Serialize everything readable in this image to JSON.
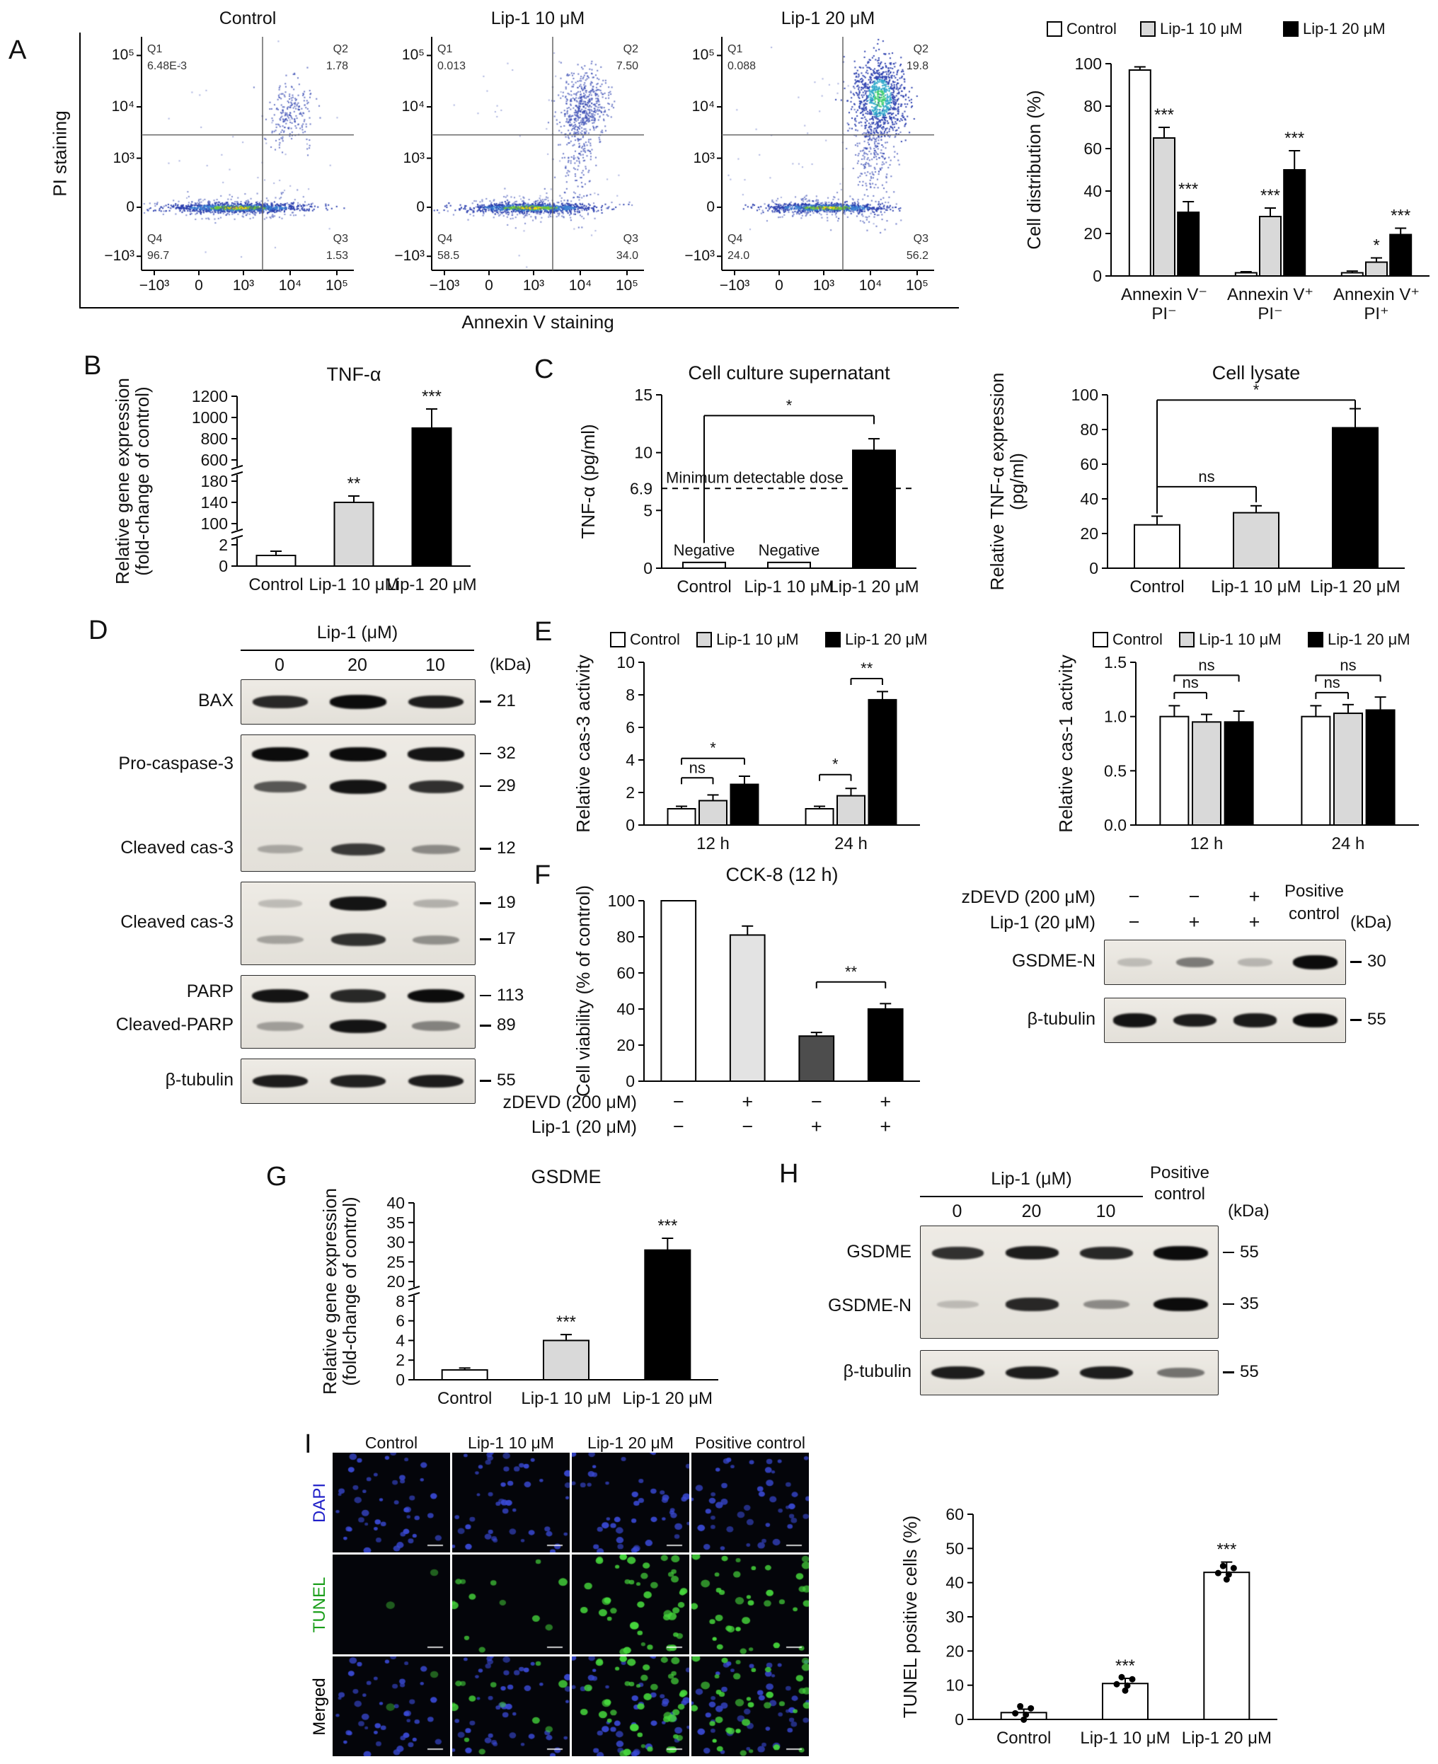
{
  "panels": {
    "a": {
      "letter": "A"
    },
    "b": {
      "letter": "B"
    },
    "c": {
      "letter": "C"
    },
    "d": {
      "letter": "D"
    },
    "e": {
      "letter": "E"
    },
    "f": {
      "letter": "F"
    },
    "g": {
      "letter": "G"
    },
    "h": {
      "letter": "H"
    },
    "i": {
      "letter": "I"
    }
  },
  "flow": {
    "ylabel": "PI staining",
    "xlabel": "Annexin V staining",
    "ticks": [
      "−10³",
      "0",
      "10³",
      "10⁴",
      "10⁵"
    ],
    "plots": [
      {
        "title": "Control",
        "quadrants": [
          {
            "name": "Q1",
            "value": "6.48E-3"
          },
          {
            "name": "Q2",
            "value": "1.78"
          },
          {
            "name": "Q3",
            "value": "1.53"
          },
          {
            "name": "Q4",
            "value": "96.7"
          }
        ]
      },
      {
        "title": "Lip-1 10 μM",
        "quadrants": [
          {
            "name": "Q1",
            "value": "0.013"
          },
          {
            "name": "Q2",
            "value": "7.50"
          },
          {
            "name": "Q3",
            "value": "34.0"
          },
          {
            "name": "Q4",
            "value": "58.5"
          }
        ]
      },
      {
        "title": "Lip-1 20 μM",
        "quadrants": [
          {
            "name": "Q1",
            "value": "0.088"
          },
          {
            "name": "Q2",
            "value": "19.8"
          },
          {
            "name": "Q3",
            "value": "56.2"
          },
          {
            "name": "Q4",
            "value": "24.0"
          }
        ]
      }
    ]
  },
  "chart_data": [
    {
      "id": "cell-distribution",
      "type": "bar",
      "title": "",
      "ylabel": "Cell distribution (%)",
      "categories": [
        "Annexin V⁻\nPI⁻",
        "Annexin V⁺\nPI⁻",
        "Annexin V⁺\nPI⁺"
      ],
      "series": [
        {
          "name": "Control",
          "color": "#ffffff",
          "values": [
            97,
            1.5,
            1.5
          ],
          "errors": [
            1.5,
            0.5,
            0.8
          ]
        },
        {
          "name": "Lip-1 10 μM",
          "color": "#d9d9d9",
          "values": [
            65,
            28,
            6.5
          ],
          "errors": [
            5,
            4,
            2
          ]
        },
        {
          "name": "Lip-1 20 μM",
          "color": "#000000",
          "values": [
            30,
            50,
            19.5
          ],
          "errors": [
            5,
            9,
            3
          ]
        }
      ],
      "yticks": [
        "0",
        "20",
        "40",
        "60",
        "80",
        "100"
      ],
      "sig": [
        {
          "cat": 0,
          "series": 1,
          "label": "***"
        },
        {
          "cat": 0,
          "series": 2,
          "label": "***"
        },
        {
          "cat": 1,
          "series": 1,
          "label": "***"
        },
        {
          "cat": 1,
          "series": 2,
          "label": "***"
        },
        {
          "cat": 2,
          "series": 1,
          "label": "*"
        },
        {
          "cat": 2,
          "series": 2,
          "label": "***"
        }
      ],
      "legend": true
    },
    {
      "id": "tnf-gene",
      "type": "bar",
      "title": "TNF-α",
      "ylabel": "Relative gene expression\n(fold-change of control)",
      "categories": [
        "Control",
        "Lip-1 10 μM",
        "Lip-1 20 μM"
      ],
      "values": [
        1,
        140,
        900
      ],
      "errors": [
        0.4,
        12,
        180
      ],
      "colors": [
        "#ffffff",
        "#d9d9d9",
        "#000000"
      ],
      "yticks": [
        "0",
        "2",
        "100",
        "140",
        "180",
        "600",
        "800",
        "1000",
        "1200"
      ],
      "breaks": [
        [
          2,
          100
        ],
        [
          180,
          600
        ]
      ],
      "sig": [
        {
          "cat": 1,
          "label": "**"
        },
        {
          "cat": 2,
          "label": "***"
        }
      ]
    },
    {
      "id": "supernatant",
      "type": "bar",
      "title": "Cell culture supernatant",
      "ylabel": "TNF-α (pg/ml)",
      "categories": [
        "Control",
        "Lip-1 10 μM",
        "Lip-1 20 μM"
      ],
      "values": [
        0.5,
        0.5,
        10.2
      ],
      "errors": [
        0,
        0,
        1
      ],
      "colors": [
        "#ffffff",
        "#ffffff",
        "#000000"
      ],
      "yticks": [
        "0",
        "5",
        "10",
        "15"
      ],
      "hline": {
        "value": 6.9,
        "label": "Minimum detectable dose",
        "tick": "6.9"
      },
      "bar_labels": [
        {
          "cat": 0,
          "label": "Negative"
        },
        {
          "cat": 1,
          "label": "Negative"
        }
      ],
      "brackets": [
        {
          "from": 0,
          "to": 2,
          "label": "*",
          "y": 13.2,
          "drops": [
            180,
            12
          ]
        }
      ]
    },
    {
      "id": "lysate",
      "type": "bar",
      "title": "Cell lysate",
      "ylabel": "Relative TNF-α expression\n(pg/ml)",
      "categories": [
        "Control",
        "Lip-1 10 μM",
        "Lip-1 20 μM"
      ],
      "values": [
        25,
        32,
        81
      ],
      "errors": [
        5,
        4,
        11
      ],
      "colors": [
        "#ffffff",
        "#d9d9d9",
        "#000000"
      ],
      "yticks": [
        "0",
        "20",
        "40",
        "60",
        "80",
        "100"
      ],
      "brackets": [
        {
          "from": 0,
          "to": 1,
          "label": "ns",
          "y": 47,
          "drops": [
            38,
            22
          ]
        },
        {
          "from": 0,
          "to": 2,
          "label": "*",
          "y": 97,
          "drops": [
            150,
            14
          ]
        }
      ]
    },
    {
      "id": "cas3-activity",
      "type": "bar",
      "title": "",
      "ylabel": "Relative cas-3 activity",
      "categories": [
        "12 h",
        "24 h"
      ],
      "series": [
        {
          "name": "Control",
          "color": "#ffffff",
          "values": [
            1,
            1
          ],
          "errors": [
            0.15,
            0.15
          ]
        },
        {
          "name": "Lip-1 10 μM",
          "color": "#d9d9d9",
          "values": [
            1.5,
            1.8
          ],
          "errors": [
            0.35,
            0.45
          ]
        },
        {
          "name": "Lip-1 20 μM",
          "color": "#000000",
          "values": [
            2.5,
            7.7
          ],
          "errors": [
            0.5,
            0.5
          ]
        }
      ],
      "yticks": [
        "0",
        "2",
        "4",
        "6",
        "8",
        "10"
      ],
      "brackets": [
        {
          "cat": 0,
          "from": 0,
          "to": 1,
          "label": "ns",
          "y": 2.9
        },
        {
          "cat": 0,
          "from": 0,
          "to": 2,
          "label": "*",
          "y": 4.1
        },
        {
          "cat": 1,
          "from": 0,
          "to": 1,
          "label": "*",
          "y": 3.1
        },
        {
          "cat": 1,
          "from": 1,
          "to": 2,
          "label": "**",
          "y": 9.0
        }
      ],
      "legend": true
    },
    {
      "id": "cas1-activity",
      "type": "bar",
      "title": "",
      "ylabel": "Relative cas-1 activity",
      "categories": [
        "12 h",
        "24 h"
      ],
      "series": [
        {
          "name": "Control",
          "color": "#ffffff",
          "values": [
            1.0,
            1.0
          ],
          "errors": [
            0.1,
            0.1
          ]
        },
        {
          "name": "Lip-1 10 μM",
          "color": "#d9d9d9",
          "values": [
            0.95,
            1.03
          ],
          "errors": [
            0.07,
            0.08
          ]
        },
        {
          "name": "Lip-1 20 μM",
          "color": "#000000",
          "values": [
            0.95,
            1.06
          ],
          "errors": [
            0.1,
            0.12
          ]
        }
      ],
      "yticks": [
        "0.0",
        "0.5",
        "1.0",
        "1.5"
      ],
      "brackets": [
        {
          "cat": 0,
          "from": 0,
          "to": 1,
          "label": "ns",
          "y": 1.22
        },
        {
          "cat": 0,
          "from": 0,
          "to": 2,
          "label": "ns",
          "y": 1.38
        },
        {
          "cat": 1,
          "from": 0,
          "to": 1,
          "label": "ns",
          "y": 1.22
        },
        {
          "cat": 1,
          "from": 0,
          "to": 2,
          "label": "ns",
          "y": 1.38
        }
      ],
      "legend": true
    },
    {
      "id": "cck8",
      "type": "bar",
      "title": "CCK-8 (12 h)",
      "ylabel": "Cell viability (% of control)",
      "values": [
        100,
        81,
        25,
        40
      ],
      "errors": [
        5,
        5,
        2,
        3
      ],
      "colors": [
        "#ffffff",
        "#e3e3e3",
        "#4d4d4d",
        "#000000"
      ],
      "yticks": [
        "0",
        "20",
        "40",
        "60",
        "80",
        "100"
      ],
      "brackets": [
        {
          "from": 2,
          "to": 3,
          "label": "**",
          "y": 55
        }
      ],
      "sign_rows": [
        {
          "label": "zDEVD (200 μM)",
          "signs": [
            "−",
            "+",
            "−",
            "+"
          ]
        },
        {
          "label": "Lip-1 (20 μM)",
          "signs": [
            "−",
            "−",
            "+",
            "+"
          ]
        }
      ]
    },
    {
      "id": "gsdme-gene",
      "type": "bar",
      "title": "GSDME",
      "ylabel": "Relative gene expression\n(fold-change of control)",
      "categories": [
        "Control",
        "Lip-1 10 μM",
        "Lip-1 20 μM"
      ],
      "values": [
        1,
        4,
        28
      ],
      "errors": [
        0.2,
        0.6,
        3
      ],
      "colors": [
        "#ffffff",
        "#d9d9d9",
        "#000000"
      ],
      "yticks": [
        "0",
        "2",
        "4",
        "6",
        "8",
        "20",
        "25",
        "30",
        "35",
        "40"
      ],
      "breaks": [
        [
          8,
          20
        ]
      ],
      "sig": [
        {
          "cat": 1,
          "label": "***"
        },
        {
          "cat": 2,
          "label": "***"
        }
      ]
    },
    {
      "id": "tunel-quant",
      "type": "bar",
      "title": "",
      "ylabel": "TUNEL positive cells (%)",
      "categories": [
        "Control",
        "Lip-1 10 μM",
        "Lip-1 20 μM"
      ],
      "values": [
        2,
        10.5,
        43
      ],
      "errors": [
        1,
        1.5,
        3
      ],
      "colors": [
        "#ffffff",
        "#ffffff",
        "#ffffff"
      ],
      "yticks": [
        "0",
        "10",
        "20",
        "30",
        "40",
        "50",
        "60"
      ],
      "sig": [
        {
          "cat": 1,
          "label": "***"
        },
        {
          "cat": 2,
          "label": "***"
        }
      ],
      "dots": true
    }
  ],
  "blots": {
    "d": {
      "header": "Lip-1 (μM)",
      "lanes": [
        "0",
        "20",
        "10"
      ],
      "kda_unit": "(kDa)",
      "strips": [
        {
          "labels": [
            {
              "text": "BAX",
              "at": 0.5
            }
          ],
          "bands": [
            {
              "kda": "21",
              "y": 0.5,
              "lanes": [
                0.85,
                1,
                0.9
              ]
            }
          ]
        },
        {
          "labels": [
            {
              "text": "Pro-caspase-3",
              "at": 0.22
            },
            {
              "text": "Cleaved cas-3",
              "at": 0.84
            }
          ],
          "bands": [
            {
              "kda": "32",
              "y": 0.14,
              "lanes": [
                1,
                1,
                0.95
              ]
            },
            {
              "kda": "29",
              "y": 0.38,
              "lanes": [
                0.6,
                0.95,
                0.8
              ]
            },
            {
              "kda": "12",
              "y": 0.84,
              "lanes": [
                0.15,
                0.75,
                0.3
              ]
            }
          ]
        },
        {
          "labels": [
            {
              "text": "Cleaved cas-3",
              "at": 0.5
            }
          ],
          "bands": [
            {
              "kda": "19",
              "y": 0.26,
              "lanes": [
                0.06,
                0.95,
                0.12
              ]
            },
            {
              "kda": "17",
              "y": 0.7,
              "lanes": [
                0.18,
                0.8,
                0.28
              ]
            }
          ]
        },
        {
          "labels": [
            {
              "text": "PARP",
              "at": 0.24
            },
            {
              "text": "Cleaved-PARP",
              "at": 0.7
            }
          ],
          "bands": [
            {
              "kda": "113",
              "y": 0.28,
              "lanes": [
                0.95,
                0.85,
                1
              ]
            },
            {
              "kda": "89",
              "y": 0.7,
              "lanes": [
                0.2,
                0.95,
                0.35
              ]
            }
          ]
        },
        {
          "labels": [
            {
              "text": "β-tubulin",
              "at": 0.5
            }
          ],
          "bands": [
            {
              "kda": "55",
              "y": 0.5,
              "lanes": [
                0.9,
                0.88,
                0.9
              ]
            }
          ]
        }
      ]
    },
    "f": {
      "rows": [
        {
          "label": "zDEVD (200 μM)",
          "signs": [
            "−",
            "−",
            "+"
          ]
        },
        {
          "label": "Lip-1 (20 μM)",
          "signs": [
            "−",
            "+",
            "+"
          ]
        }
      ],
      "pos_label": "Positive\ncontrol",
      "kda_unit": "(kDa)",
      "strips": [
        {
          "labels": [
            {
              "text": "GSDME-N",
              "at": 0.5
            }
          ],
          "bands": [
            {
              "kda": "30",
              "y": 0.5,
              "lanes": [
                0.05,
                0.4,
                0.08,
                1
              ]
            }
          ]
        },
        {
          "labels": [
            {
              "text": "β-tubulin",
              "at": 0.5
            }
          ],
          "bands": [
            {
              "kda": "55",
              "y": 0.5,
              "lanes": [
                0.95,
                0.9,
                0.92,
                1
              ]
            }
          ]
        }
      ]
    },
    "h": {
      "header": "Lip-1 (μM)",
      "lanes": [
        "0",
        "20",
        "10"
      ],
      "pos_label": "Positive\ncontrol",
      "kda_unit": "(kDa)",
      "strips": [
        {
          "labels": [
            {
              "text": "GSDME",
              "at": 0.24
            },
            {
              "text": "GSDME-N",
              "at": 0.72
            }
          ],
          "bands": [
            {
              "kda": "55",
              "y": 0.24,
              "lanes": [
                0.8,
                0.9,
                0.85,
                1
              ]
            },
            {
              "kda": "35",
              "y": 0.7,
              "lanes": [
                0.05,
                0.85,
                0.3,
                1
              ]
            }
          ]
        },
        {
          "labels": [
            {
              "text": "β-tubulin",
              "at": 0.5
            }
          ],
          "bands": [
            {
              "kda": "55",
              "y": 0.5,
              "lanes": [
                0.9,
                0.9,
                0.9,
                0.45
              ]
            }
          ]
        }
      ]
    }
  },
  "microscopy": {
    "columns": [
      "Control",
      "Lip-1 10 μM",
      "Lip-1 20 μM",
      "Positive control"
    ],
    "rows": [
      {
        "label": "DAPI",
        "color": "#2020c8"
      },
      {
        "label": "TUNEL",
        "color": "#1a9e1a"
      },
      {
        "label": "Merged",
        "color": "#000000"
      }
    ]
  }
}
